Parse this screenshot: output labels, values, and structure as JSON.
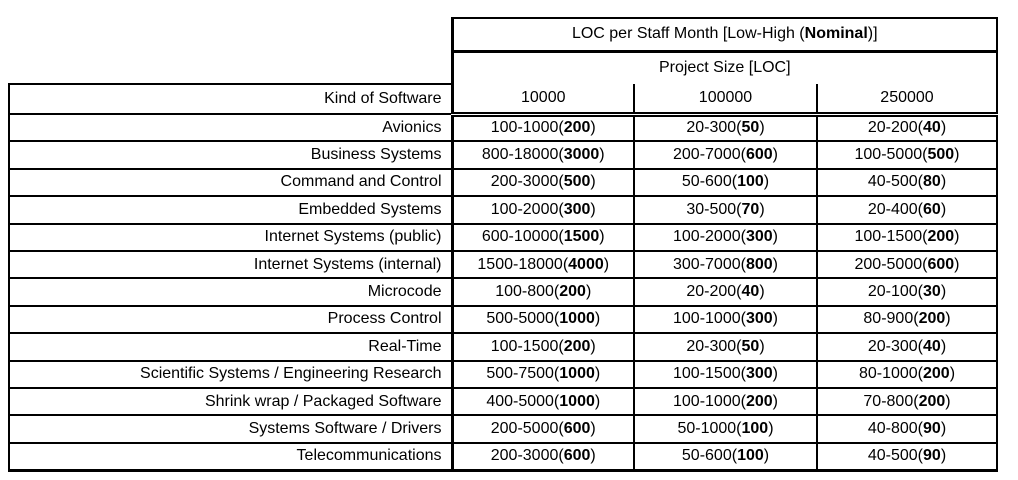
{
  "colors": {
    "background": "#ffffff",
    "text": "#000000",
    "border": "#000000"
  },
  "title_row": {
    "prefix": "LOC per Staff Month [Low-High (",
    "bold": "Nominal",
    "suffix": ")]"
  },
  "subtitle_row": "Project Size [LOC]",
  "columns": {
    "kind": "Kind of Software",
    "sizes": [
      "10000",
      "100000",
      "250000"
    ]
  },
  "rows": [
    {
      "kind": "Avionics",
      "cells": [
        [
          "100-1000(",
          "200",
          ")"
        ],
        [
          "20-300(",
          "50",
          ")"
        ],
        [
          "20-200(",
          "40",
          ")"
        ]
      ]
    },
    {
      "kind": "Business Systems",
      "cells": [
        [
          "800-18000(",
          "3000",
          ")"
        ],
        [
          "200-7000(",
          "600",
          ")"
        ],
        [
          "100-5000(",
          "500",
          ")"
        ]
      ]
    },
    {
      "kind": "Command and Control",
      "cells": [
        [
          "200-3000(",
          "500",
          ")"
        ],
        [
          "50-600(",
          "100",
          ")"
        ],
        [
          "40-500(",
          "80",
          ")"
        ]
      ]
    },
    {
      "kind": "Embedded Systems",
      "cells": [
        [
          "100-2000(",
          "300",
          ")"
        ],
        [
          "30-500(",
          "70",
          ")"
        ],
        [
          "20-400(",
          "60",
          ")"
        ]
      ]
    },
    {
      "kind": "Internet Systems (public)",
      "cells": [
        [
          "600-10000(",
          "1500",
          ")"
        ],
        [
          "100-2000(",
          "300",
          ")"
        ],
        [
          "100-1500(",
          "200",
          ")"
        ]
      ]
    },
    {
      "kind": "Internet Systems (internal)",
      "cells": [
        [
          "1500-18000(",
          "4000",
          ")"
        ],
        [
          "300-7000(",
          "800",
          ")"
        ],
        [
          "200-5000(",
          "600",
          ")"
        ]
      ]
    },
    {
      "kind": "Microcode",
      "cells": [
        [
          "100-800(",
          "200",
          ")"
        ],
        [
          "20-200(",
          "40",
          ")"
        ],
        [
          "20-100(",
          "30",
          ")"
        ]
      ]
    },
    {
      "kind": "Process Control",
      "cells": [
        [
          "500-5000(",
          "1000",
          ")"
        ],
        [
          "100-1000(",
          "300",
          ")"
        ],
        [
          "80-900(",
          "200",
          ")"
        ]
      ]
    },
    {
      "kind": "Real-Time",
      "cells": [
        [
          "100-1500(",
          "200",
          ")"
        ],
        [
          "20-300(",
          "50",
          ")"
        ],
        [
          "20-300(",
          "40",
          ")"
        ]
      ]
    },
    {
      "kind": "Scientific Systems / Engineering Research",
      "cells": [
        [
          "500-7500(",
          "1000",
          ")"
        ],
        [
          "100-1500(",
          "300",
          ")"
        ],
        [
          "80-1000(",
          "200",
          ")"
        ]
      ]
    },
    {
      "kind": "Shrink wrap / Packaged Software",
      "cells": [
        [
          "400-5000(",
          "1000",
          ")"
        ],
        [
          "100-1000(",
          "200",
          ")"
        ],
        [
          "70-800(",
          "200",
          ")"
        ]
      ]
    },
    {
      "kind": "Systems Software / Drivers",
      "cells": [
        [
          "200-5000(",
          "600",
          ")"
        ],
        [
          "50-1000(",
          "100",
          ")"
        ],
        [
          "40-800(",
          "90",
          ")"
        ]
      ]
    },
    {
      "kind": "Telecommunications",
      "cells": [
        [
          "200-3000(",
          "600",
          ")"
        ],
        [
          "50-600(",
          "100",
          ")"
        ],
        [
          "40-500(",
          "90",
          ")"
        ]
      ]
    }
  ]
}
